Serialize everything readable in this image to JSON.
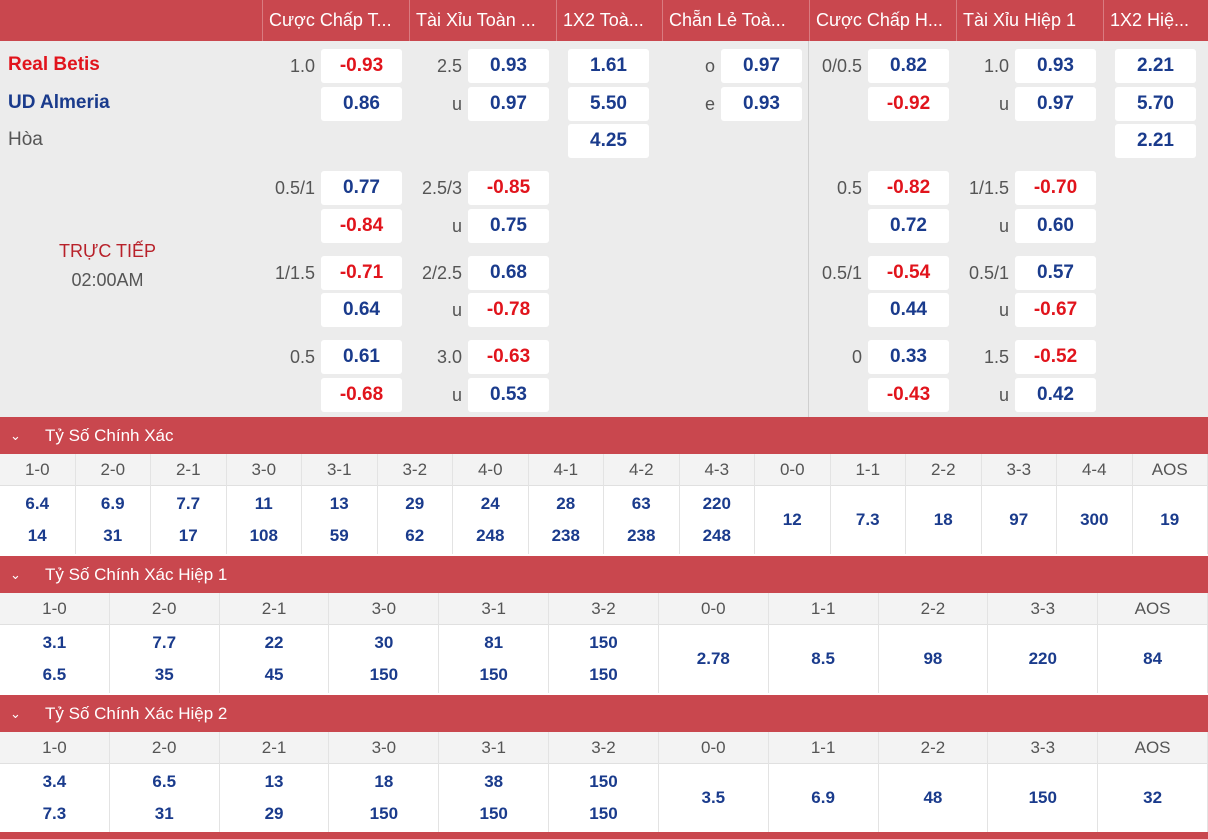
{
  "columns": [
    "Cược Chấp T...",
    "Tài Xỉu Toàn ...",
    "1X2 Toà...",
    "Chẵn Lẻ Toà...",
    "Cược Chấp H...",
    "Tài Xỉu Hiệp 1",
    "1X2 Hiệ..."
  ],
  "match": {
    "home": "Real Betis",
    "away": "UD Almeria",
    "draw": "Hòa",
    "status": "TRỰC TIẾP",
    "time": "02:00AM"
  },
  "odds": {
    "ft_ah": [
      {
        "line": "1.0",
        "home": "-0.93",
        "away": "0.86"
      },
      {
        "line": "0.5/1",
        "home": "0.77",
        "away": "-0.84"
      },
      {
        "line": "1/1.5",
        "home": "-0.71",
        "away": "0.64"
      },
      {
        "line": "0.5",
        "home": "0.61",
        "away": "-0.68"
      }
    ],
    "ft_ou": [
      {
        "line": "2.5",
        "over": "0.93",
        "under_label": "u",
        "under": "0.97"
      },
      {
        "line": "2.5/3",
        "over": "-0.85",
        "under_label": "u",
        "under": "0.75"
      },
      {
        "line": "2/2.5",
        "over": "0.68",
        "under_label": "u",
        "under": "-0.78"
      },
      {
        "line": "3.0",
        "over": "-0.63",
        "under_label": "u",
        "under": "0.53"
      }
    ],
    "ft_1x2": [
      "1.61",
      "5.50",
      "4.25"
    ],
    "odd_even": {
      "odd_label": "o",
      "odd": "0.97",
      "even_label": "e",
      "even": "0.93"
    },
    "h1_ah": [
      {
        "line": "0/0.5",
        "home": "0.82",
        "away": "-0.92"
      },
      {
        "line": "0.5",
        "home": "-0.82",
        "away": "0.72"
      },
      {
        "line": "0.5/1",
        "home": "-0.54",
        "away": "0.44"
      },
      {
        "line": "0",
        "home": "0.33",
        "away": "-0.43"
      }
    ],
    "h1_ou": [
      {
        "line": "1.0",
        "over": "0.93",
        "under_label": "u",
        "under": "0.97"
      },
      {
        "line": "1/1.5",
        "over": "-0.70",
        "under_label": "u",
        "under": "0.60"
      },
      {
        "line": "0.5/1",
        "over": "0.57",
        "under_label": "u",
        "under": "-0.67"
      },
      {
        "line": "1.5",
        "over": "-0.52",
        "under_label": "u",
        "under": "0.42"
      }
    ],
    "h1_1x2": [
      "2.21",
      "5.70",
      "2.21"
    ]
  },
  "sections": [
    {
      "title": "Tỷ Số Chính Xác",
      "chevron": "⌄",
      "cells": [
        {
          "label": "1-0",
          "top": "6.4",
          "bottom": "14"
        },
        {
          "label": "2-0",
          "top": "6.9",
          "bottom": "31"
        },
        {
          "label": "2-1",
          "top": "7.7",
          "bottom": "17"
        },
        {
          "label": "3-0",
          "top": "11",
          "bottom": "108"
        },
        {
          "label": "3-1",
          "top": "13",
          "bottom": "59"
        },
        {
          "label": "3-2",
          "top": "29",
          "bottom": "62"
        },
        {
          "label": "4-0",
          "top": "24",
          "bottom": "248"
        },
        {
          "label": "4-1",
          "top": "28",
          "bottom": "238"
        },
        {
          "label": "4-2",
          "top": "63",
          "bottom": "238"
        },
        {
          "label": "4-3",
          "top": "220",
          "bottom": "248"
        },
        {
          "label": "0-0",
          "single": "12"
        },
        {
          "label": "1-1",
          "single": "7.3"
        },
        {
          "label": "2-2",
          "single": "18"
        },
        {
          "label": "3-3",
          "single": "97"
        },
        {
          "label": "4-4",
          "single": "300"
        },
        {
          "label": "AOS",
          "single": "19"
        }
      ]
    },
    {
      "title": "Tỷ Số Chính Xác Hiệp 1",
      "chevron": "⌄",
      "cells": [
        {
          "label": "1-0",
          "top": "3.1",
          "bottom": "6.5"
        },
        {
          "label": "2-0",
          "top": "7.7",
          "bottom": "35"
        },
        {
          "label": "2-1",
          "top": "22",
          "bottom": "45"
        },
        {
          "label": "3-0",
          "top": "30",
          "bottom": "150"
        },
        {
          "label": "3-1",
          "top": "81",
          "bottom": "150"
        },
        {
          "label": "3-2",
          "top": "150",
          "bottom": "150"
        },
        {
          "label": "0-0",
          "single": "2.78"
        },
        {
          "label": "1-1",
          "single": "8.5"
        },
        {
          "label": "2-2",
          "single": "98"
        },
        {
          "label": "3-3",
          "single": "220"
        },
        {
          "label": "AOS",
          "single": "84"
        }
      ]
    },
    {
      "title": "Tỷ Số Chính Xác Hiệp 2",
      "chevron": "⌄",
      "cells": [
        {
          "label": "1-0",
          "top": "3.4",
          "bottom": "7.3"
        },
        {
          "label": "2-0",
          "top": "6.5",
          "bottom": "31"
        },
        {
          "label": "2-1",
          "top": "13",
          "bottom": "29"
        },
        {
          "label": "3-0",
          "top": "18",
          "bottom": "150"
        },
        {
          "label": "3-1",
          "top": "38",
          "bottom": "150"
        },
        {
          "label": "3-2",
          "top": "150",
          "bottom": "150"
        },
        {
          "label": "0-0",
          "single": "3.5"
        },
        {
          "label": "1-1",
          "single": "6.9"
        },
        {
          "label": "2-2",
          "single": "48"
        },
        {
          "label": "3-3",
          "single": "150"
        },
        {
          "label": "AOS",
          "single": "32"
        }
      ]
    }
  ]
}
